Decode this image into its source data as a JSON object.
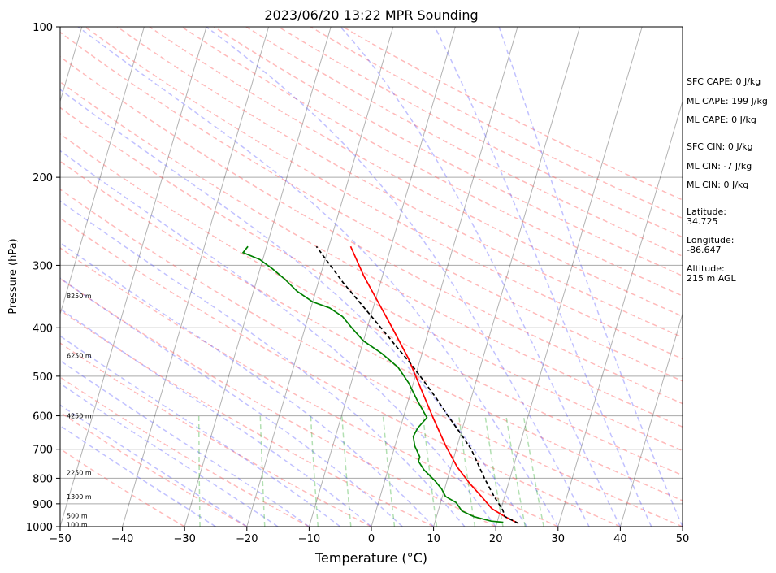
{
  "chart_data": {
    "type": "line",
    "title": "2023/06/20 13:22 MPR Sounding",
    "xlabel": "Temperature (°C)",
    "ylabel": "Pressure (hPa)",
    "xlim": [
      -50,
      50
    ],
    "ylim": [
      1000,
      100
    ],
    "yscale": "log",
    "skew": "skew-T log-p",
    "grid": true,
    "x_ticks": [
      "−50",
      "−40",
      "−30",
      "−20",
      "−10",
      "0",
      "10",
      "20",
      "30",
      "40",
      "50"
    ],
    "y_ticks": [
      "100",
      "200",
      "300",
      "400",
      "500",
      "600",
      "700",
      "800",
      "900",
      "1000"
    ],
    "height_labels": [
      {
        "label": "100 m",
        "p": 990
      },
      {
        "label": "500 m",
        "p": 950
      },
      {
        "label": "1300 m",
        "p": 870
      },
      {
        "label": "2250 m",
        "p": 780
      },
      {
        "label": "4250 m",
        "p": 600
      },
      {
        "label": "6250 m",
        "p": 455
      },
      {
        "label": "8250 m",
        "p": 345
      }
    ],
    "series": [
      {
        "name": "",
        "color": "#ff0000",
        "style": "solid",
        "points": [
          [
            23.5,
            985
          ],
          [
            21.0,
            955
          ],
          [
            18.5,
            920
          ],
          [
            16.5,
            875
          ],
          [
            13.8,
            820
          ],
          [
            11.0,
            760
          ],
          [
            8.2,
            690
          ],
          [
            5.0,
            610
          ],
          [
            1.5,
            530
          ],
          [
            -2.0,
            460
          ],
          [
            -6.0,
            400
          ],
          [
            -9.5,
            355
          ],
          [
            -13.0,
            315
          ],
          [
            -16.5,
            275
          ]
        ]
      },
      {
        "name": "",
        "color": "#008000",
        "style": "solid",
        "points": [
          [
            21.0,
            980
          ],
          [
            19.0,
            975
          ],
          [
            16.0,
            955
          ],
          [
            13.8,
            930
          ],
          [
            12.5,
            895
          ],
          [
            10.5,
            870
          ],
          [
            9.5,
            840
          ],
          [
            8.0,
            808
          ],
          [
            5.8,
            770
          ],
          [
            4.5,
            740
          ],
          [
            4.5,
            725
          ],
          [
            3.2,
            690
          ],
          [
            2.5,
            660
          ],
          [
            2.8,
            635
          ],
          [
            3.8,
            605
          ],
          [
            1.5,
            560
          ],
          [
            -0.8,
            515
          ],
          [
            -3.2,
            480
          ],
          [
            -6.5,
            450
          ],
          [
            -10.0,
            425
          ],
          [
            -12.5,
            400
          ],
          [
            -14.5,
            380
          ],
          [
            -17.0,
            365
          ],
          [
            -20.0,
            355
          ],
          [
            -23.0,
            338
          ],
          [
            -25.5,
            320
          ],
          [
            -28.0,
            305
          ],
          [
            -30.5,
            292
          ],
          [
            -33.5,
            283
          ],
          [
            -33.0,
            275
          ]
        ]
      },
      {
        "name": "",
        "color": "#000000",
        "style": "dashed",
        "points": [
          [
            23.5,
            985
          ],
          [
            21.0,
            955
          ],
          [
            20.3,
            925
          ],
          [
            18.3,
            870
          ],
          [
            15.9,
            800
          ],
          [
            12.4,
            700
          ],
          [
            9.9,
            650
          ],
          [
            7.1,
            600
          ],
          [
            4.5,
            555
          ],
          [
            1.5,
            510
          ],
          [
            -1.5,
            470
          ],
          [
            -5.0,
            430
          ],
          [
            -8.8,
            390
          ],
          [
            -12.5,
            355
          ],
          [
            -16.0,
            325
          ],
          [
            -19.5,
            295
          ],
          [
            -22.0,
            275
          ]
        ]
      }
    ]
  },
  "annotations": {
    "sfc_cape": "SFC CAPE: 0 J/kg",
    "ml_cape_1": "ML CAPE: 199 J/kg",
    "ml_cape_2": "ML CAPE: 0 J/kg",
    "sfc_cin": "SFC CIN: 0 J/kg",
    "ml_cin_1": "ML CIN: -7 J/kg",
    "ml_cin_2": "ML CIN: 0 J/kg",
    "latitude_label": "Latitude:",
    "latitude_value": "34.725",
    "longitude_label": "Longitude:",
    "longitude_value": "-86.647",
    "altitude_label": "Altitude:",
    "altitude_value": "215 m AGL"
  },
  "colors": {
    "dry_adiabat": "#ff6666",
    "moist_adiabat": "#4d4dff",
    "mixing_ratio": "#009900",
    "isotherm": "#000000",
    "temperature": "#ff0000",
    "dewpoint": "#008000",
    "parcel": "#000000"
  }
}
